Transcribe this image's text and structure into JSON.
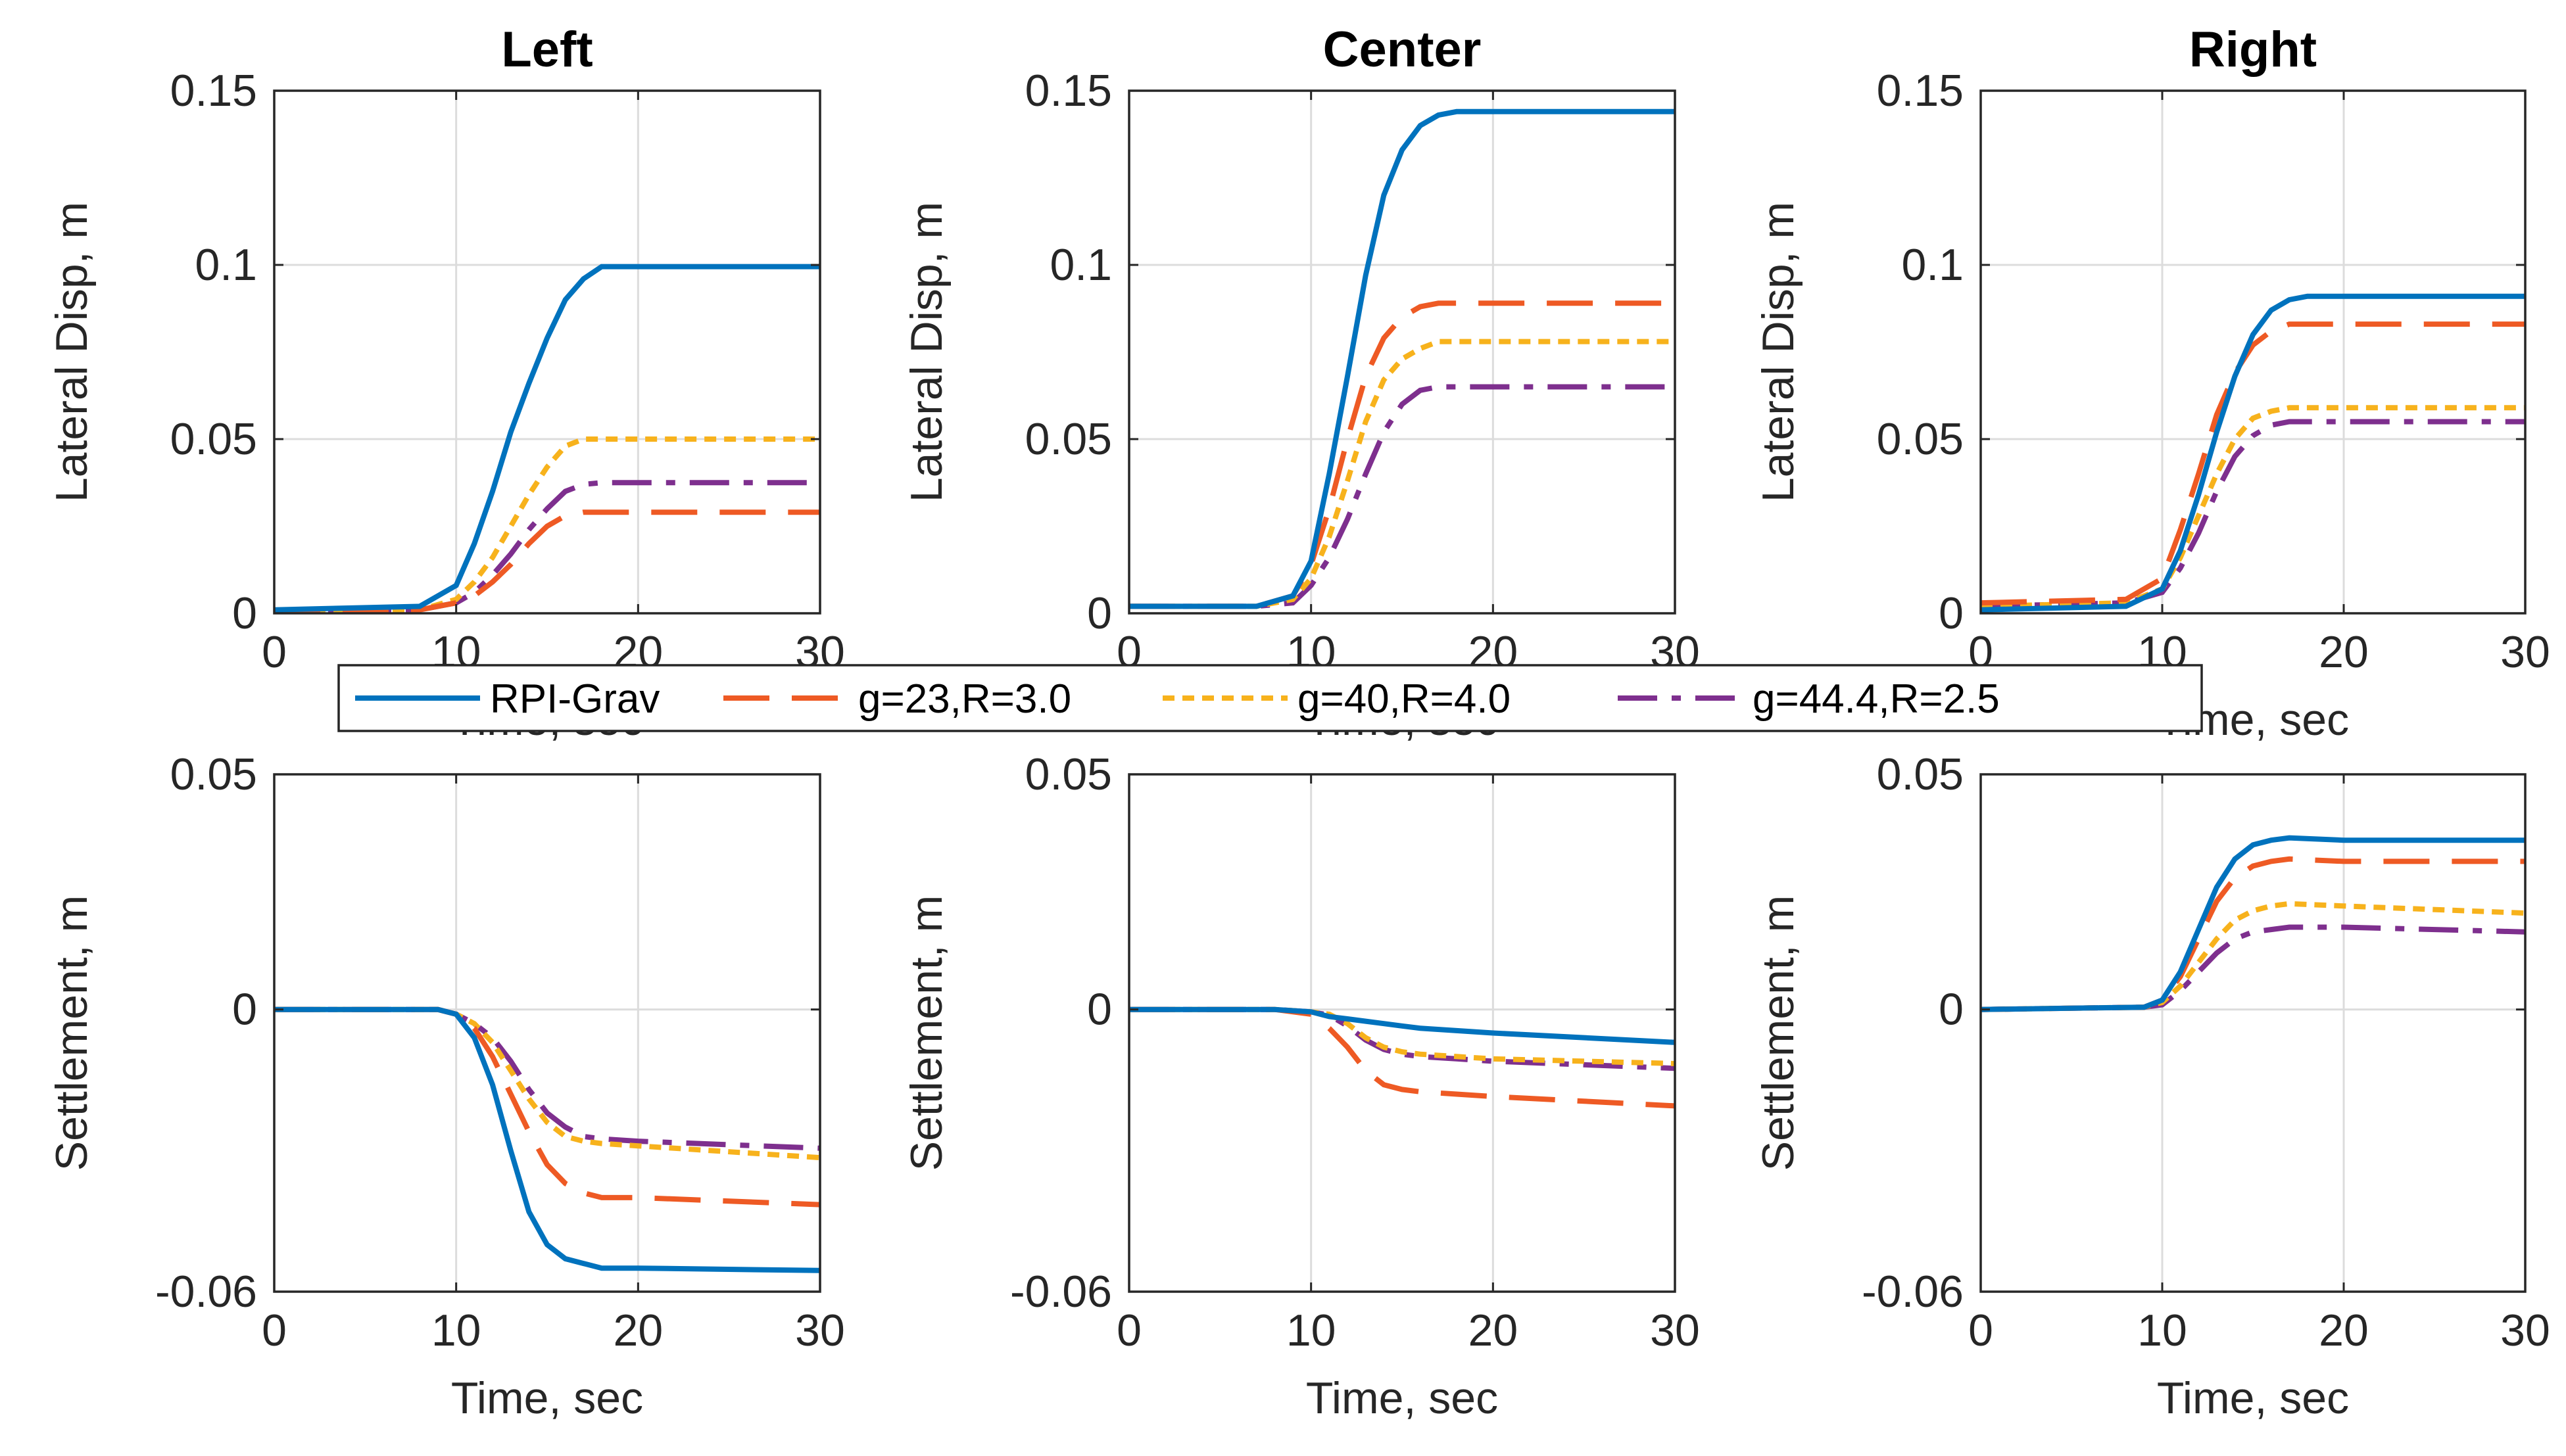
{
  "figure": {
    "legend": {
      "entries": [
        {
          "name": "RPI-Grav",
          "color": "#0072BD",
          "dash": "solid"
        },
        {
          "name": "g=23,R=3.0",
          "color": "#EE5A24",
          "dash": "dashed"
        },
        {
          "name": "g=40,R=4.0",
          "color": "#F7B21C",
          "dash": "dotted"
        },
        {
          "name": "g=44.4,R=2.5",
          "color": "#7E2F8E",
          "dash": "dashdot"
        }
      ],
      "placement": "center between rows"
    }
  },
  "chart_data": [
    {
      "id": "lat-left",
      "type": "line",
      "title": "Left",
      "xlabel": "Time, sec",
      "ylabel": "Lateral Disp, m",
      "xlim": [
        0,
        30
      ],
      "ylim": [
        0,
        0.15
      ],
      "xticks": [
        "0",
        "10",
        "20",
        "30"
      ],
      "yticks": [
        "0",
        "0.05",
        "0.1",
        "0.15"
      ],
      "grid": true,
      "series": [
        {
          "name": "RPI-Grav",
          "x": [
            0,
            8,
            10,
            11,
            12,
            13,
            14,
            15,
            16,
            17,
            18,
            30
          ],
          "y": [
            0.001,
            0.002,
            0.008,
            0.02,
            0.035,
            0.052,
            0.066,
            0.079,
            0.09,
            0.096,
            0.0995,
            0.0995
          ]
        },
        {
          "name": "g=23,R=3.0",
          "x": [
            0,
            8,
            10,
            11,
            12,
            13,
            14,
            15,
            16,
            17,
            18,
            30
          ],
          "y": [
            0.0005,
            0.001,
            0.003,
            0.005,
            0.009,
            0.014,
            0.02,
            0.025,
            0.028,
            0.029,
            0.029,
            0.029
          ]
        },
        {
          "name": "g=40,R=4.0",
          "x": [
            0,
            8,
            10,
            11,
            12,
            13,
            14,
            15,
            16,
            17,
            18,
            30
          ],
          "y": [
            0.0005,
            0.001,
            0.004,
            0.009,
            0.016,
            0.025,
            0.034,
            0.042,
            0.048,
            0.05,
            0.05,
            0.05
          ]
        },
        {
          "name": "g=44.4,R=2.5",
          "x": [
            0,
            8,
            10,
            11,
            12,
            13,
            14,
            15,
            16,
            17,
            18,
            30
          ],
          "y": [
            0.0005,
            0.001,
            0.003,
            0.006,
            0.011,
            0.017,
            0.024,
            0.03,
            0.035,
            0.037,
            0.0375,
            0.0375
          ]
        }
      ]
    },
    {
      "id": "lat-center",
      "type": "line",
      "title": "Center",
      "xlabel": "Time, sec",
      "ylabel": "Lateral Disp, m",
      "xlim": [
        0,
        30
      ],
      "ylim": [
        0,
        0.15
      ],
      "xticks": [
        "0",
        "10",
        "20",
        "30"
      ],
      "yticks": [
        "0",
        "0.05",
        "0.1",
        "0.15"
      ],
      "grid": true,
      "series": [
        {
          "name": "RPI-Grav",
          "x": [
            0,
            7,
            9,
            10,
            11,
            12,
            13,
            14,
            15,
            16,
            17,
            18,
            30
          ],
          "y": [
            0.002,
            0.002,
            0.005,
            0.015,
            0.04,
            0.068,
            0.097,
            0.12,
            0.133,
            0.14,
            0.143,
            0.144,
            0.144
          ]
        },
        {
          "name": "g=23,R=3.0",
          "x": [
            0,
            7,
            9,
            10,
            11,
            12,
            13,
            14,
            15,
            16,
            17,
            18,
            30
          ],
          "y": [
            0.002,
            0.002,
            0.005,
            0.014,
            0.03,
            0.05,
            0.068,
            0.079,
            0.085,
            0.088,
            0.089,
            0.089,
            0.089
          ]
        },
        {
          "name": "g=40,R=4.0",
          "x": [
            0,
            7,
            9,
            10,
            11,
            12,
            13,
            14,
            15,
            16,
            17,
            18,
            30
          ],
          "y": [
            0.002,
            0.002,
            0.004,
            0.01,
            0.022,
            0.038,
            0.055,
            0.067,
            0.073,
            0.076,
            0.078,
            0.078,
            0.078
          ]
        },
        {
          "name": "g=44.4,R=2.5",
          "x": [
            0,
            7,
            9,
            10,
            11,
            12,
            13,
            14,
            15,
            16,
            17,
            18,
            30
          ],
          "y": [
            0.002,
            0.002,
            0.003,
            0.008,
            0.016,
            0.027,
            0.04,
            0.052,
            0.06,
            0.064,
            0.065,
            0.065,
            0.065
          ]
        }
      ]
    },
    {
      "id": "lat-right",
      "type": "line",
      "title": "Right",
      "xlabel": "Time, sec",
      "ylabel": "Lateral Disp, m",
      "xlim": [
        0,
        30
      ],
      "ylim": [
        0,
        0.15
      ],
      "xticks": [
        "0",
        "10",
        "20",
        "30"
      ],
      "yticks": [
        "0",
        "0.05",
        "0.1",
        "0.15"
      ],
      "grid": true,
      "series": [
        {
          "name": "RPI-Grav",
          "x": [
            0,
            8,
            10,
            11,
            12,
            13,
            14,
            15,
            16,
            17,
            18,
            30
          ],
          "y": [
            0.001,
            0.002,
            0.007,
            0.018,
            0.034,
            0.052,
            0.068,
            0.08,
            0.087,
            0.09,
            0.091,
            0.091
          ]
        },
        {
          "name": "g=23,R=3.0",
          "x": [
            0,
            8,
            10,
            11,
            12,
            13,
            14,
            15,
            16,
            17,
            18,
            30
          ],
          "y": [
            0.003,
            0.004,
            0.01,
            0.024,
            0.04,
            0.057,
            0.069,
            0.077,
            0.081,
            0.083,
            0.083,
            0.083
          ]
        },
        {
          "name": "g=40,R=4.0",
          "x": [
            0,
            8,
            10,
            11,
            12,
            13,
            14,
            15,
            16,
            17,
            18,
            30
          ],
          "y": [
            0.002,
            0.003,
            0.007,
            0.016,
            0.028,
            0.04,
            0.05,
            0.056,
            0.058,
            0.059,
            0.059,
            0.059
          ]
        },
        {
          "name": "g=44.4,R=2.5",
          "x": [
            0,
            8,
            10,
            11,
            12,
            13,
            14,
            15,
            16,
            17,
            18,
            30
          ],
          "y": [
            0.002,
            0.003,
            0.006,
            0.013,
            0.023,
            0.035,
            0.045,
            0.051,
            0.054,
            0.055,
            0.055,
            0.055
          ]
        }
      ]
    },
    {
      "id": "set-left",
      "type": "line",
      "title": "",
      "xlabel": "Time, sec",
      "ylabel": "Settlement, m",
      "xlim": [
        0,
        30
      ],
      "ylim": [
        -0.06,
        0.05
      ],
      "xticks": [
        "0",
        "10",
        "20",
        "30"
      ],
      "yticks": [
        "-0.06",
        "0",
        "0.05"
      ],
      "ytick_values": [
        -0.06,
        0,
        0.05
      ],
      "grid": true,
      "series": [
        {
          "name": "RPI-Grav",
          "x": [
            0,
            9,
            10,
            11,
            12,
            13,
            14,
            15,
            16,
            17,
            18,
            20,
            30
          ],
          "y": [
            0,
            0,
            -0.001,
            -0.006,
            -0.016,
            -0.03,
            -0.043,
            -0.05,
            -0.053,
            -0.054,
            -0.055,
            -0.055,
            -0.0555
          ]
        },
        {
          "name": "g=23,R=3.0",
          "x": [
            0,
            9,
            10,
            11,
            12,
            13,
            14,
            15,
            16,
            17,
            18,
            20,
            30
          ],
          "y": [
            0,
            0,
            -0.001,
            -0.004,
            -0.01,
            -0.018,
            -0.026,
            -0.033,
            -0.037,
            -0.039,
            -0.04,
            -0.04,
            -0.0415
          ]
        },
        {
          "name": "g=40,R=4.0",
          "x": [
            0,
            9,
            10,
            11,
            12,
            13,
            14,
            15,
            16,
            17,
            18,
            20,
            30
          ],
          "y": [
            0,
            0,
            -0.001,
            -0.003,
            -0.007,
            -0.013,
            -0.019,
            -0.024,
            -0.027,
            -0.028,
            -0.0285,
            -0.029,
            -0.0315
          ]
        },
        {
          "name": "g=44.4,R=2.5",
          "x": [
            0,
            9,
            10,
            11,
            12,
            13,
            14,
            15,
            16,
            17,
            18,
            20,
            30
          ],
          "y": [
            0,
            0,
            -0.001,
            -0.003,
            -0.006,
            -0.011,
            -0.017,
            -0.022,
            -0.025,
            -0.027,
            -0.0275,
            -0.028,
            -0.0295
          ]
        }
      ]
    },
    {
      "id": "set-center",
      "type": "line",
      "title": "",
      "xlabel": "Time, sec",
      "ylabel": "Settlement, m",
      "xlim": [
        0,
        30
      ],
      "ylim": [
        -0.06,
        0.05
      ],
      "xticks": [
        "0",
        "10",
        "20",
        "30"
      ],
      "yticks": [
        "-0.06",
        "0",
        "0.05"
      ],
      "ytick_values": [
        -0.06,
        0,
        0.05
      ],
      "grid": true,
      "series": [
        {
          "name": "RPI-Grav",
          "x": [
            0,
            8,
            10,
            11,
            12,
            13,
            14,
            15,
            16,
            18,
            20,
            30
          ],
          "y": [
            0,
            0,
            -0.0005,
            -0.0015,
            -0.002,
            -0.0025,
            -0.003,
            -0.0035,
            -0.004,
            -0.0045,
            -0.005,
            -0.007
          ]
        },
        {
          "name": "g=23,R=3.0",
          "x": [
            0,
            8,
            10,
            11,
            12,
            13,
            14,
            15,
            16,
            18,
            20,
            30
          ],
          "y": [
            0,
            0,
            -0.001,
            -0.004,
            -0.008,
            -0.013,
            -0.016,
            -0.017,
            -0.0175,
            -0.018,
            -0.0185,
            -0.0205
          ]
        },
        {
          "name": "g=40,R=4.0",
          "x": [
            0,
            8,
            10,
            11,
            12,
            13,
            14,
            15,
            16,
            18,
            20,
            30
          ],
          "y": [
            0,
            0,
            -0.0005,
            -0.001,
            -0.003,
            -0.006,
            -0.008,
            -0.009,
            -0.0095,
            -0.01,
            -0.0105,
            -0.0115
          ]
        },
        {
          "name": "g=44.4,R=2.5",
          "x": [
            0,
            8,
            10,
            11,
            12,
            13,
            14,
            15,
            16,
            18,
            20,
            30
          ],
          "y": [
            0,
            0,
            -0.0005,
            -0.0012,
            -0.0035,
            -0.0065,
            -0.0085,
            -0.0095,
            -0.01,
            -0.0105,
            -0.011,
            -0.0125
          ]
        }
      ]
    },
    {
      "id": "set-right",
      "type": "line",
      "title": "",
      "xlabel": "Time, sec",
      "ylabel": "Settlement, m",
      "xlim": [
        0,
        30
      ],
      "ylim": [
        -0.06,
        0.05
      ],
      "xticks": [
        "0",
        "10",
        "20",
        "30"
      ],
      "yticks": [
        "-0.06",
        "0",
        "0.05"
      ],
      "ytick_values": [
        -0.06,
        0,
        0.05
      ],
      "grid": true,
      "series": [
        {
          "name": "RPI-Grav",
          "x": [
            0,
            9,
            10,
            11,
            12,
            13,
            14,
            15,
            16,
            17,
            20,
            30
          ],
          "y": [
            0,
            0.0005,
            0.002,
            0.008,
            0.017,
            0.026,
            0.032,
            0.035,
            0.036,
            0.0365,
            0.036,
            0.036
          ]
        },
        {
          "name": "g=23,R=3.0",
          "x": [
            0,
            9,
            10,
            11,
            12,
            13,
            14,
            15,
            16,
            17,
            20,
            30
          ],
          "y": [
            0,
            0.0005,
            0.002,
            0.007,
            0.015,
            0.023,
            0.028,
            0.0305,
            0.0315,
            0.032,
            0.0315,
            0.0315
          ]
        },
        {
          "name": "g=40,R=4.0",
          "x": [
            0,
            9,
            10,
            11,
            12,
            13,
            14,
            15,
            16,
            17,
            20,
            30
          ],
          "y": [
            0,
            0.0005,
            0.0015,
            0.005,
            0.01,
            0.015,
            0.019,
            0.021,
            0.022,
            0.0225,
            0.022,
            0.0205
          ]
        },
        {
          "name": "g=44.4,R=2.5",
          "x": [
            0,
            9,
            10,
            11,
            12,
            13,
            14,
            15,
            16,
            17,
            20,
            30
          ],
          "y": [
            0,
            0.0005,
            0.001,
            0.004,
            0.008,
            0.012,
            0.015,
            0.0165,
            0.017,
            0.0175,
            0.0175,
            0.0165
          ]
        }
      ]
    }
  ]
}
